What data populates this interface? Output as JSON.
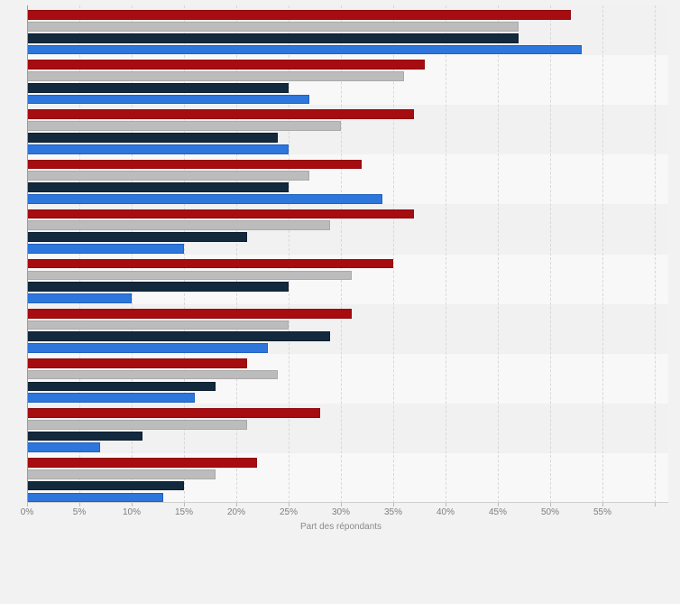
{
  "chart_data": {
    "type": "bar",
    "orientation": "horizontal",
    "title": "",
    "xlabel": "Part des répondants",
    "ylabel": "",
    "xlim": [
      0,
      61.3
    ],
    "x_tick_step": 5,
    "x_ticks": [
      "0%",
      "5%",
      "10%",
      "15%",
      "20%",
      "25%",
      "30%",
      "35%",
      "40%",
      "45%",
      "50%",
      "55%"
    ],
    "grid": "vertical-dashed-every-5pct",
    "legend_position": "none-visible",
    "category_labels_visible": false,
    "categories": [
      "",
      "",
      "",
      "",
      "",
      "",
      "",
      "",
      "",
      ""
    ],
    "series": [
      {
        "name": "series-red",
        "color": "#a60c10",
        "border_color": "#8e0a0d",
        "values": [
          52,
          38,
          37,
          32,
          37,
          35,
          31,
          21,
          28,
          22
        ]
      },
      {
        "name": "series-gray",
        "color": "#bcbcbc",
        "border_color": "#a9a9a9",
        "values": [
          47,
          36,
          30,
          27,
          29,
          31,
          25,
          24,
          21,
          18
        ]
      },
      {
        "name": "series-darkblue",
        "color": "#13293e",
        "border_color": "#0c1d2e",
        "values": [
          47,
          25,
          24,
          25,
          21,
          25,
          29,
          18,
          11,
          15
        ]
      },
      {
        "name": "series-blue",
        "color": "#2c76dc",
        "border_color": "#2161bd",
        "values": [
          53,
          27,
          25,
          34,
          15,
          10,
          23,
          16,
          7,
          13
        ]
      }
    ],
    "band_colors": {
      "odd": "#f1f1f2",
      "even": "#f8f8f8"
    },
    "page_background": "#f2f2f2"
  }
}
